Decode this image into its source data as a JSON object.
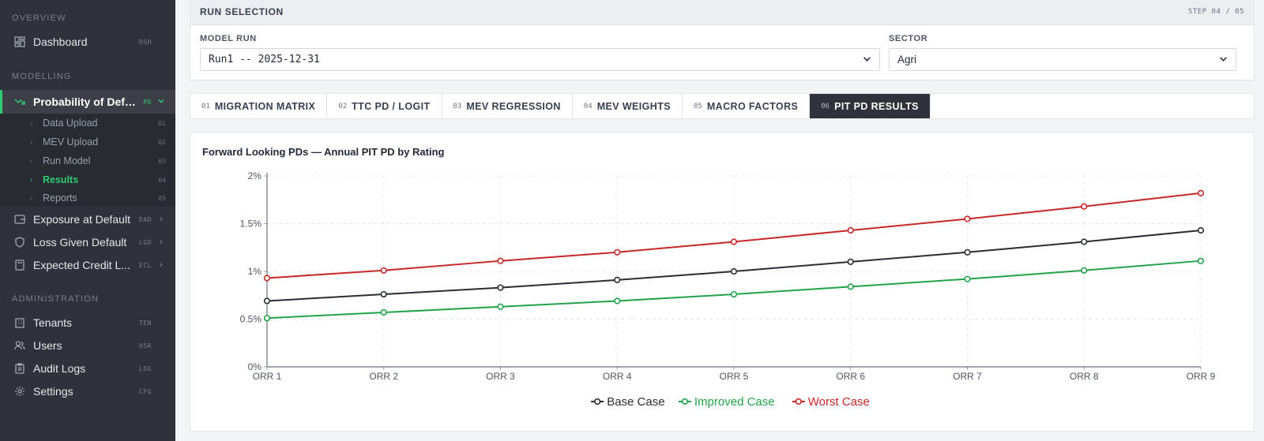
{
  "sidebar": {
    "sections": [
      {
        "title": "OVERVIEW"
      },
      {
        "title": "MODELLING"
      },
      {
        "title": "ADMINISTRATION"
      }
    ],
    "items": {
      "dashboard": {
        "label": "Dashboard",
        "code": "DSH",
        "icon": "dashboard-icon"
      },
      "pd": {
        "label": "Probability of Default",
        "code": "PD",
        "icon": "trend-down-icon"
      },
      "ead": {
        "label": "Exposure at Default",
        "code": "EAD",
        "icon": "wallet-icon"
      },
      "lgd": {
        "label": "Loss Given Default",
        "code": "LGD",
        "icon": "shield-icon"
      },
      "ecl": {
        "label": "Expected Credit L...",
        "code": "ECL",
        "icon": "calculator-icon"
      },
      "tenants": {
        "label": "Tenants",
        "code": "TEN",
        "icon": "building-icon"
      },
      "users": {
        "label": "Users",
        "code": "USR",
        "icon": "users-icon"
      },
      "audit": {
        "label": "Audit Logs",
        "code": "LOG",
        "icon": "clipboard-icon"
      },
      "settings": {
        "label": "Settings",
        "code": "CFG",
        "icon": "gear-icon"
      }
    },
    "pd_sub": [
      {
        "label": "Data Upload",
        "code": "01"
      },
      {
        "label": "MEV Upload",
        "code": "02"
      },
      {
        "label": "Run Model",
        "code": "03"
      },
      {
        "label": "Results",
        "code": "04"
      },
      {
        "label": "Reports",
        "code": "05"
      }
    ],
    "accent": "#2ecc71"
  },
  "run_selection": {
    "title": "RUN SELECTION",
    "step": "STEP 04 / 05",
    "model_run_label": "MODEL RUN",
    "model_run_value": "Run1 -- 2025-12-31",
    "sector_label": "SECTOR",
    "sector_value": "Agri"
  },
  "tabs": [
    {
      "num": "01",
      "label": "MIGRATION MATRIX"
    },
    {
      "num": "02",
      "label": "TTC PD / LOGIT"
    },
    {
      "num": "03",
      "label": "MEV REGRESSION"
    },
    {
      "num": "04",
      "label": "MEV WEIGHTS"
    },
    {
      "num": "05",
      "label": "MACRO FACTORS"
    },
    {
      "num": "06",
      "label": "PIT PD RESULTS"
    }
  ],
  "active_tab": 5,
  "chart_data": {
    "type": "line",
    "title": "Forward Looking PDs — Annual PIT PD by Rating",
    "categories": [
      "ORR 1",
      "ORR 2",
      "ORR 3",
      "ORR 4",
      "ORR 5",
      "ORR 6",
      "ORR 7",
      "ORR 8",
      "ORR 9"
    ],
    "y_ticks": [
      "0%",
      "0.5%",
      "1%",
      "1.5%",
      "2%"
    ],
    "ylim": [
      0,
      2
    ],
    "grid": true,
    "legend_position": "bottom",
    "series": [
      {
        "name": "Base Case",
        "color": "#2b2d33",
        "values": [
          0.69,
          0.76,
          0.83,
          0.91,
          1.0,
          1.1,
          1.2,
          1.31,
          1.43
        ]
      },
      {
        "name": "Improved Case",
        "color": "#22a34a",
        "values": [
          0.51,
          0.57,
          0.63,
          0.69,
          0.76,
          0.84,
          0.92,
          1.01,
          1.11
        ]
      },
      {
        "name": "Worst Case",
        "color": "#c62828",
        "values": [
          0.93,
          1.01,
          1.11,
          1.2,
          1.31,
          1.43,
          1.55,
          1.68,
          1.82
        ]
      }
    ]
  }
}
